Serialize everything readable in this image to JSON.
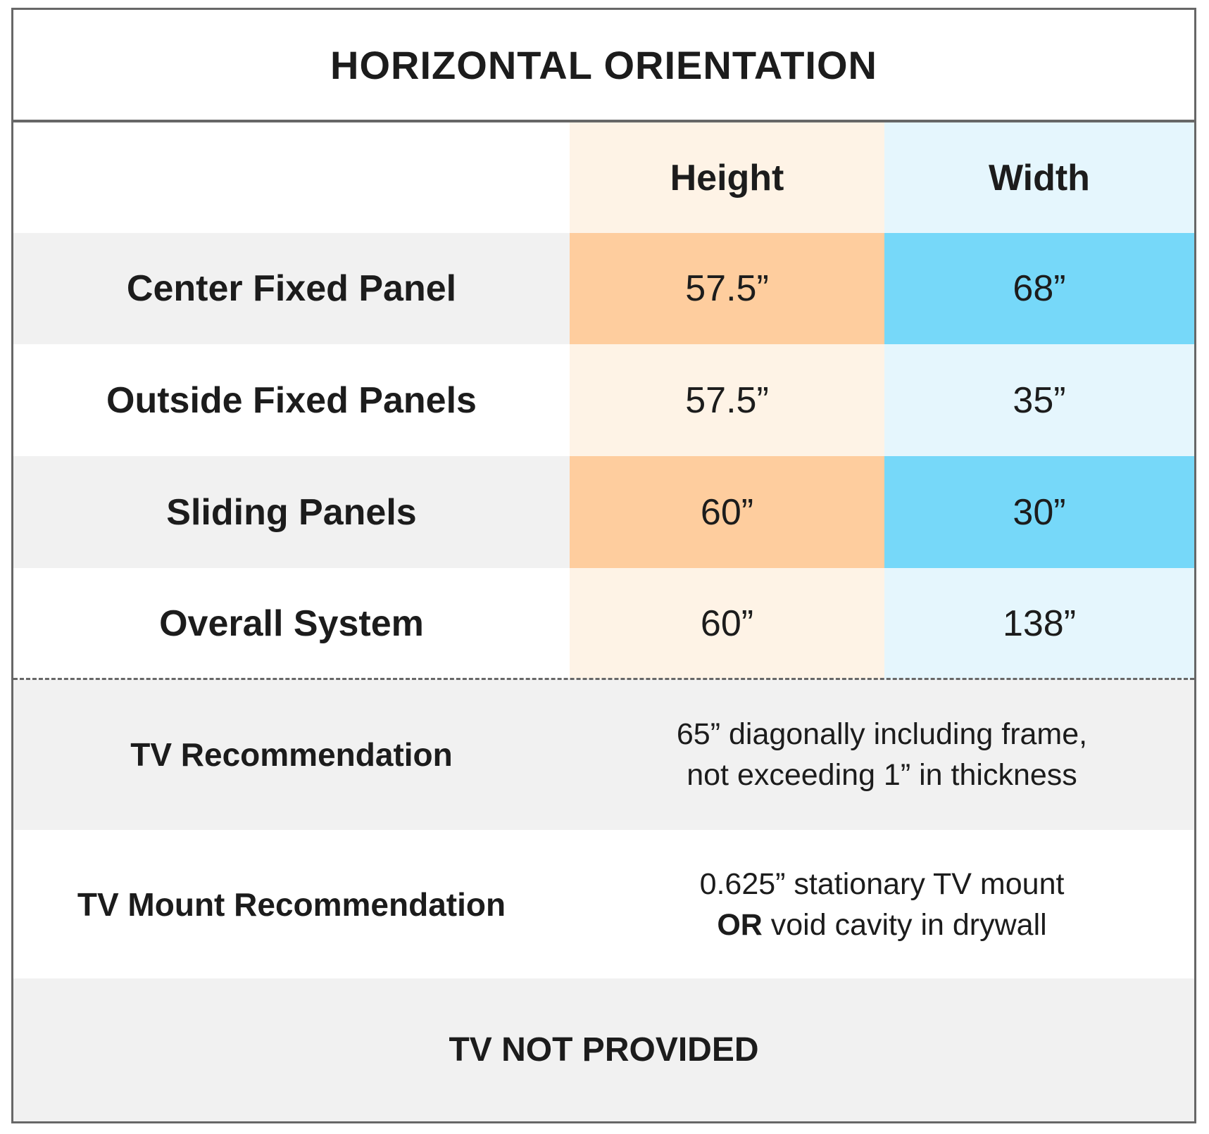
{
  "title": "HORIZONTAL ORIENTATION",
  "columns": {
    "blank": "",
    "height": "Height",
    "width": "Width"
  },
  "rows": [
    {
      "label": "Center Fixed Panel",
      "height": "57.5”",
      "width": "68”"
    },
    {
      "label": "Outside Fixed Panels",
      "height": "57.5”",
      "width": "35”"
    },
    {
      "label": "Sliding Panels",
      "height": "60”",
      "width": "30”"
    },
    {
      "label": "Overall System",
      "height": "60”",
      "width": "138”"
    }
  ],
  "tv_recommendation": {
    "label": "TV Recommendation",
    "line1": "65” diagonally including frame,",
    "line2": "not exceeding 1” in thickness"
  },
  "tv_mount_recommendation": {
    "label": "TV Mount Recommendation",
    "line1": "0.625” stationary TV mount",
    "line2_bold": "OR",
    "line2_rest": " void cavity in drywall"
  },
  "footer": "TV NOT PROVIDED",
  "colors": {
    "height_light": "#fef3e6",
    "height_strong": "#fecd9e",
    "width_light": "#e5f6fd",
    "width_strong": "#76d8f9",
    "row_gray": "#f1f1f1",
    "border": "#676767"
  }
}
